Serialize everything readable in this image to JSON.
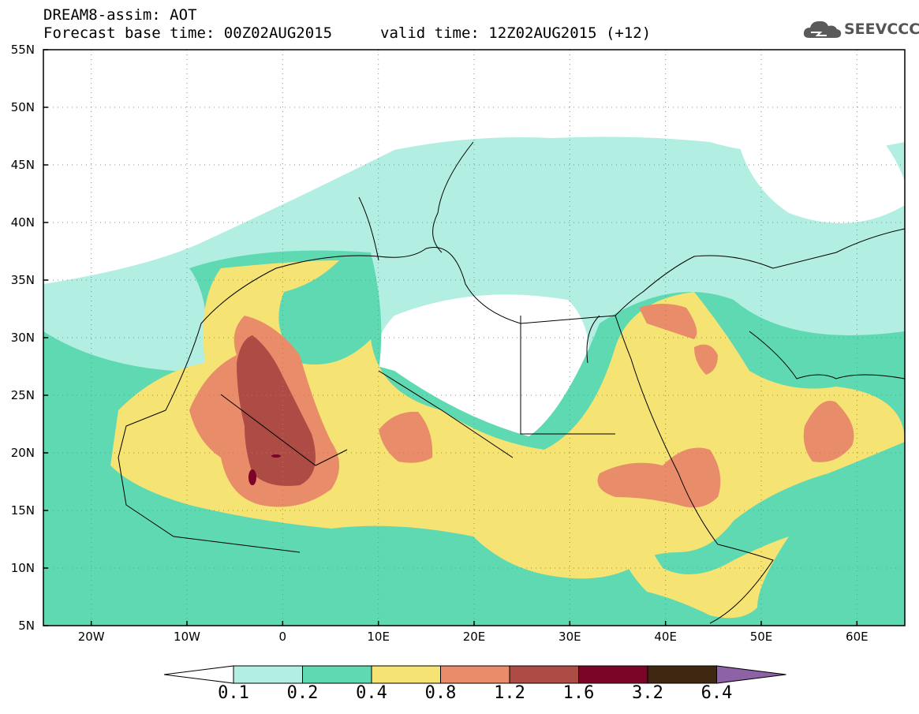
{
  "header": {
    "title_line1": "DREAM8-assim: AOT",
    "title_line2": "Forecast base time: 00Z02AUG2015",
    "valid_time": "valid time: 12Z02AUG2015 (+12)",
    "logo_text": "SEEVCCC",
    "logo_icon": "cloud-icon"
  },
  "map": {
    "projection": "lat-lon",
    "lon_range": [
      -25,
      65
    ],
    "lat_range": [
      5,
      55
    ],
    "graticule": "dotted",
    "y_ticks": [
      {
        "value": 55,
        "label": "55N"
      },
      {
        "value": 50,
        "label": "50N"
      },
      {
        "value": 45,
        "label": "45N"
      },
      {
        "value": 40,
        "label": "40N"
      },
      {
        "value": 35,
        "label": "35N"
      },
      {
        "value": 30,
        "label": "30N"
      },
      {
        "value": 25,
        "label": "25N"
      },
      {
        "value": 20,
        "label": "20N"
      },
      {
        "value": 15,
        "label": "15N"
      },
      {
        "value": 10,
        "label": "10N"
      },
      {
        "value": 5,
        "label": "5N"
      }
    ],
    "x_ticks": [
      {
        "value": -20,
        "label": "20W"
      },
      {
        "value": -10,
        "label": "10W"
      },
      {
        "value": 0,
        "label": "0"
      },
      {
        "value": 10,
        "label": "10E"
      },
      {
        "value": 20,
        "label": "20E"
      },
      {
        "value": 30,
        "label": "30E"
      },
      {
        "value": 40,
        "label": "40E"
      },
      {
        "value": 50,
        "label": "50E"
      },
      {
        "value": 60,
        "label": "60E"
      }
    ]
  },
  "colorbar": {
    "labels": [
      "0.1",
      "0.2",
      "0.4",
      "0.8",
      "1.2",
      "1.6",
      "3.2",
      "6.4"
    ],
    "colors": [
      "#ffffff",
      "#b3eee2",
      "#5fd9b1",
      "#f5e374",
      "#e88c6a",
      "#ad4b45",
      "#7a0526",
      "#3f2712",
      "#8d62a6"
    ]
  },
  "chart_data": {
    "type": "heatmap",
    "title": "DREAM8-assim: AOT",
    "variable": "AOT",
    "levels": [
      0.1,
      0.2,
      0.4,
      0.8,
      1.2,
      1.6,
      3.2,
      6.4
    ],
    "features": [
      {
        "level": 0.1,
        "lon": 20,
        "lat": 28,
        "rx": 35,
        "ry": 15
      },
      {
        "level": 0.1,
        "lon": 60,
        "lat": 30,
        "rx": 10,
        "ry": 20
      },
      {
        "level": 0.1,
        "lon": 12,
        "lat": 49,
        "rx": 12,
        "ry": 4
      },
      {
        "level": 0.1,
        "lon": 50,
        "lat": 47,
        "rx": 14,
        "ry": 4
      },
      {
        "level": 0.2,
        "lon": 20,
        "lat": 15,
        "rx": 38,
        "ry": 9
      },
      {
        "level": 0.2,
        "lon": -10,
        "lat": 22,
        "rx": 14,
        "ry": 12
      },
      {
        "level": 0.2,
        "lon": 48,
        "lat": 22,
        "rx": 14,
        "ry": 14
      },
      {
        "level": 0.2,
        "lon": 55,
        "lat": 40,
        "rx": 8,
        "ry": 5
      },
      {
        "level": 0.4,
        "lon": 0,
        "lat": 24,
        "rx": 15,
        "ry": 10
      },
      {
        "level": 0.4,
        "lon": 25,
        "lat": 14,
        "rx": 25,
        "ry": 5
      },
      {
        "level": 0.4,
        "lon": 45,
        "lat": 23,
        "rx": 10,
        "ry": 10
      },
      {
        "level": 0.8,
        "lon": -1,
        "lat": 21,
        "rx": 8,
        "ry": 7
      },
      {
        "level": 0.8,
        "lon": 14,
        "lat": 21,
        "rx": 3,
        "ry": 2
      },
      {
        "level": 0.8,
        "lon": 41,
        "lat": 17,
        "rx": 3,
        "ry": 3
      },
      {
        "level": 0.8,
        "lon": 56,
        "lat": 21,
        "rx": 3,
        "ry": 3
      },
      {
        "level": 1.2,
        "lon": -1,
        "lat": 22,
        "rx": 3,
        "ry": 5
      },
      {
        "level": 1.6,
        "lon": -3,
        "lat": 17,
        "rx": 0.3,
        "ry": 0.8
      }
    ]
  }
}
